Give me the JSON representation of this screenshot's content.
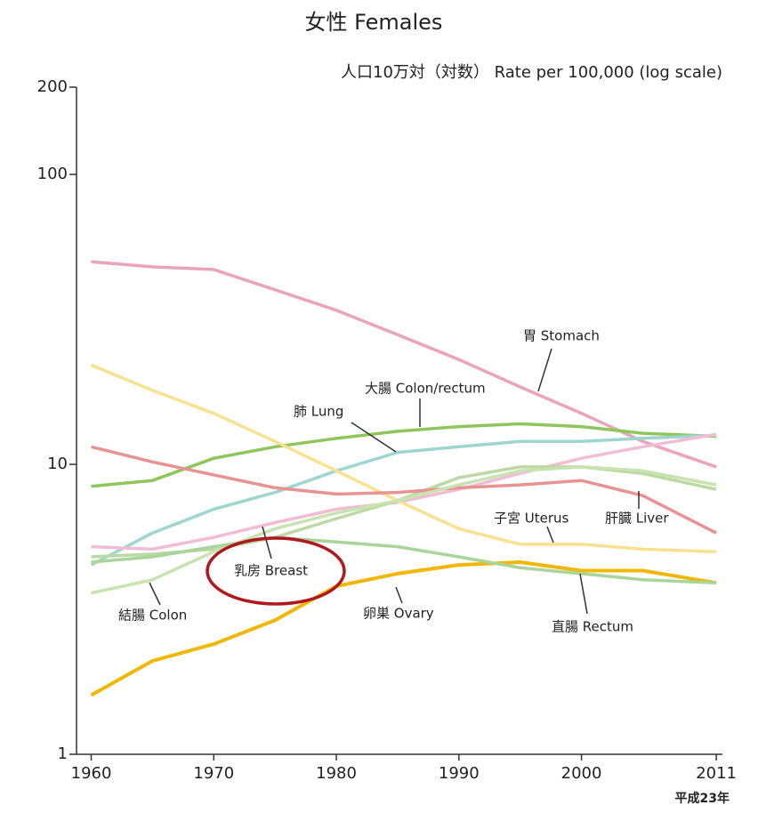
{
  "chart_data": {
    "type": "line",
    "title": "女性 Females",
    "y_label": "人口10万対（対数） Rate per 100,000 (log scale)",
    "footnote": "平成23年",
    "log_scale": true,
    "x": [
      1960,
      1965,
      1970,
      1975,
      1980,
      1985,
      1990,
      1995,
      2000,
      2005,
      2011
    ],
    "xlim": [
      1958.8,
      2011.5
    ],
    "xticks": [
      1960,
      1970,
      1980,
      1990,
      2000,
      2011
    ],
    "ylim": [
      1,
      200
    ],
    "yticks": [
      1,
      10,
      100,
      200
    ],
    "series": [
      {
        "name": "胃 Stomach",
        "color": "#eba3b8",
        "values": [
          50,
          48,
          47,
          40,
          34,
          28,
          23,
          18.5,
          15,
          12,
          9.8
        ]
      },
      {
        "name": "大腸 Colon/rectum",
        "color": "#8fc65c",
        "values": [
          8.4,
          8.8,
          10.5,
          11.5,
          12.3,
          13,
          13.5,
          13.8,
          13.5,
          12.8,
          12.5
        ]
      },
      {
        "name": "肺 Lung",
        "color": "#9dd6d0",
        "values": [
          4.5,
          5.8,
          7,
          8,
          9.5,
          11,
          11.5,
          12,
          12,
          12.3,
          12.6
        ]
      },
      {
        "name": "乳房 Breast",
        "color": "#f2bcd4",
        "values": [
          5.2,
          5.1,
          5.6,
          6.3,
          7,
          7.4,
          8.2,
          9.3,
          10.5,
          11.5,
          12.7
        ]
      },
      {
        "name": "子宮 Uterus",
        "color": "#f8e291",
        "values": [
          22,
          18,
          15,
          12,
          9.5,
          7.5,
          6,
          5.3,
          5.3,
          5.1,
          5.0
        ]
      },
      {
        "name": "肝臓 Liver",
        "color": "#bcd9a4",
        "values": [
          4.8,
          4.9,
          5.1,
          5.6,
          6.5,
          7.5,
          9,
          9.8,
          9.8,
          9.3,
          8.2
        ]
      },
      {
        "name": "直腸 Rectum",
        "color": "#e99292",
        "values": [
          11.5,
          10.2,
          9.2,
          8.3,
          7.9,
          8,
          8.3,
          8.5,
          8.8,
          7.8,
          5.8
        ]
      },
      {
        "name": "結腸 Colon",
        "color": "#c6e3b0",
        "values": [
          3.6,
          4,
          5,
          6,
          6.8,
          7.5,
          8.5,
          9.5,
          9.8,
          9.5,
          8.5
        ]
      },
      {
        "name": "卵巣 Ovary",
        "color": "#f2b705",
        "values": [
          1.6,
          2.1,
          2.4,
          2.9,
          3.8,
          4.2,
          4.5,
          4.6,
          4.3,
          4.3,
          3.9
        ]
      },
      {
        "color": "#a8d59a",
        "values": [
          4.6,
          4.8,
          5.2,
          5.6,
          5.4,
          5.2,
          4.8,
          4.4,
          4.2,
          4.0,
          3.9
        ]
      }
    ]
  }
}
